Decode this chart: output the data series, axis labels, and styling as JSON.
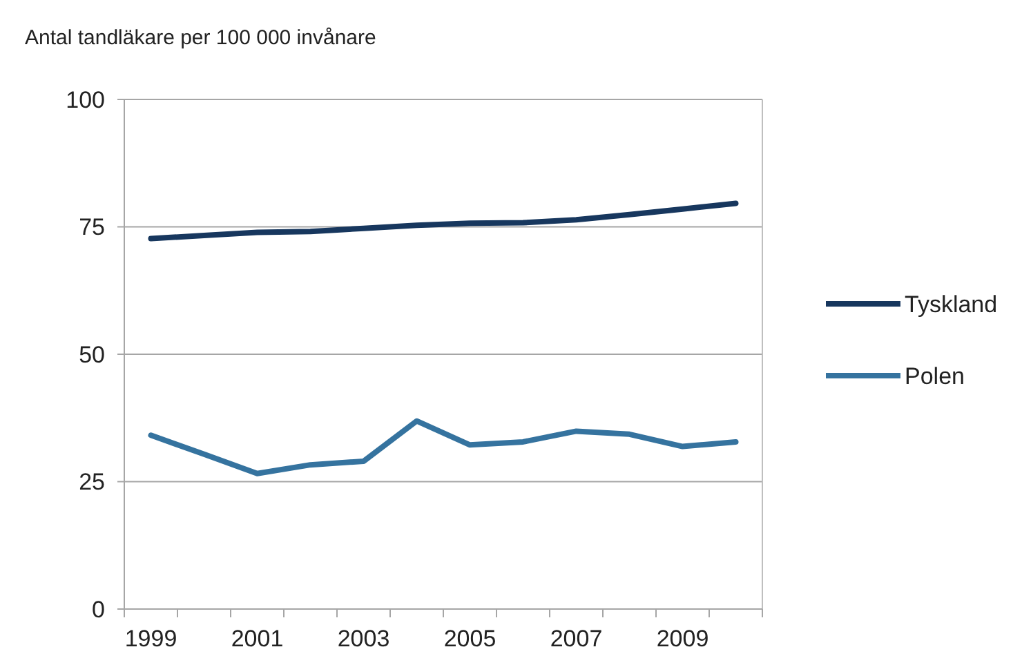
{
  "chart_data": {
    "type": "line",
    "title": "Antal tandläkare per 100 000 invånare",
    "categories": [
      "1999",
      null,
      "2001",
      null,
      "2003",
      null,
      "2005",
      null,
      "2007",
      null,
      "2009",
      null
    ],
    "series": [
      {
        "name": "Tyskland",
        "color": "#17375e",
        "values": [
          72.7,
          73.3,
          73.9,
          74.1,
          74.7,
          75.3,
          75.7,
          75.8,
          76.4,
          77.4,
          78.5,
          79.6
        ]
      },
      {
        "name": "Polen",
        "color": "#35739f",
        "values": [
          34.1,
          30.4,
          26.6,
          28.3,
          29.0,
          36.9,
          32.2,
          32.8,
          34.9,
          34.3,
          31.9,
          32.8
        ]
      }
    ],
    "ylim": [
      0,
      100
    ],
    "yticks": [
      0,
      25,
      50,
      75,
      100
    ],
    "grid": "y",
    "legend": "right",
    "marker": "none",
    "line_style": "solid"
  }
}
